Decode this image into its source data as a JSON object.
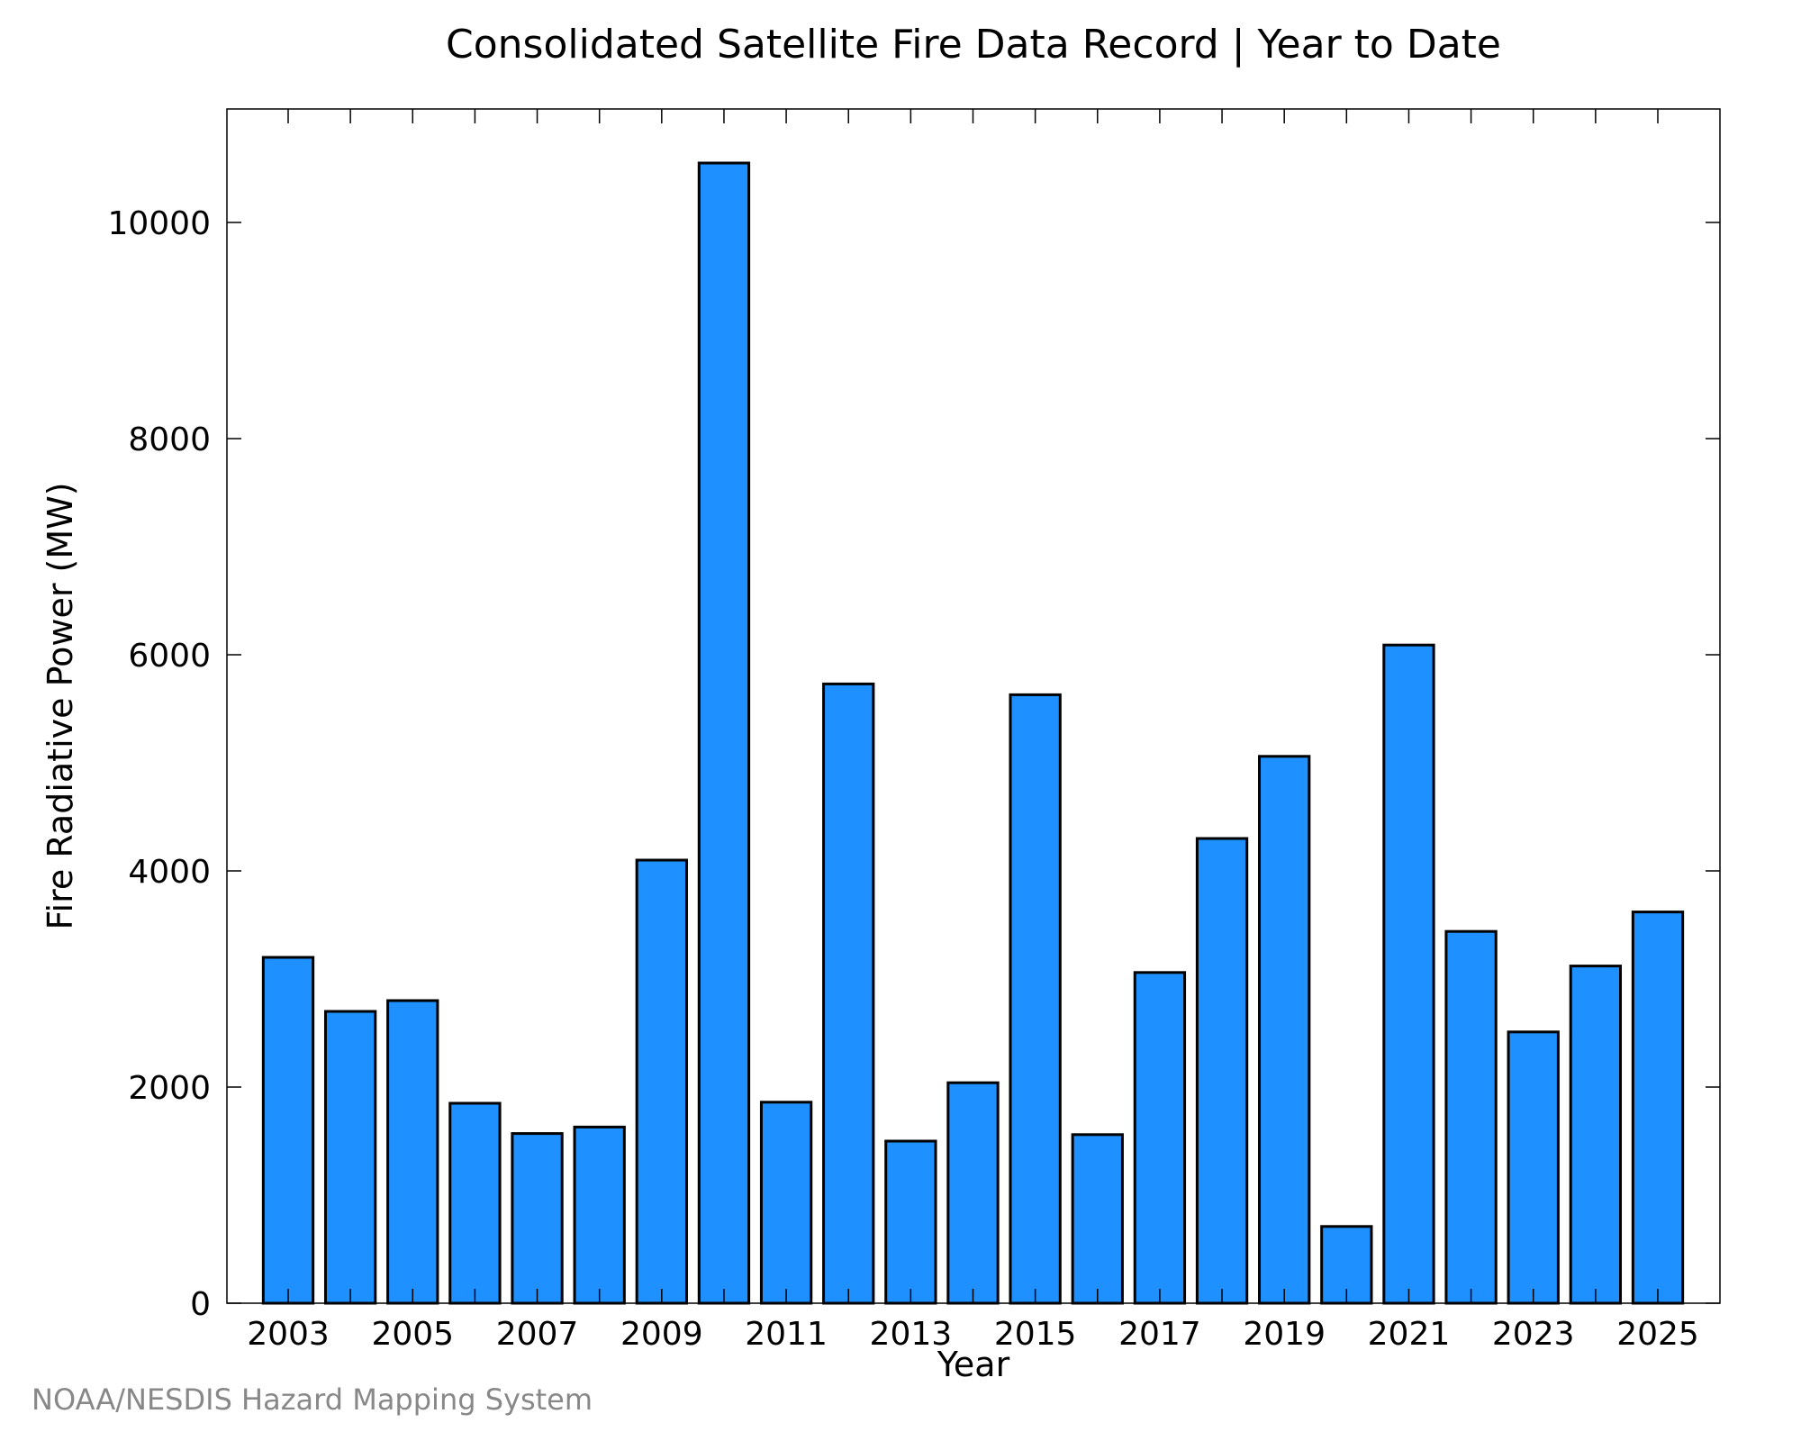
{
  "chart_data": {
    "type": "bar",
    "title": "Consolidated Satellite Fire Data Record | Year to Date",
    "xlabel": "Year",
    "ylabel": "Fire Radiative Power (MW)",
    "categories": [
      "2003",
      "2004",
      "2005",
      "2006",
      "2007",
      "2008",
      "2009",
      "2010",
      "2011",
      "2012",
      "2013",
      "2014",
      "2015",
      "2016",
      "2017",
      "2018",
      "2019",
      "2020",
      "2021",
      "2022",
      "2023",
      "2024",
      "2025"
    ],
    "x_tick_labels": [
      "2003",
      "2005",
      "2007",
      "2009",
      "2011",
      "2013",
      "2015",
      "2017",
      "2019",
      "2021",
      "2023",
      "2025"
    ],
    "values": [
      3200,
      2700,
      2800,
      1850,
      1570,
      1630,
      4100,
      10550,
      1860,
      5730,
      1500,
      2040,
      5630,
      1560,
      3060,
      4300,
      5060,
      710,
      6090,
      3440,
      2510,
      3120,
      3620
    ],
    "ylim": [
      0,
      11050
    ],
    "y_ticks": [
      0,
      2000,
      4000,
      6000,
      8000,
      10000
    ],
    "grid": false,
    "legend": "none",
    "bar_color": "#1e90ff"
  },
  "credit": "NOAA/NESDIS Hazard Mapping System"
}
